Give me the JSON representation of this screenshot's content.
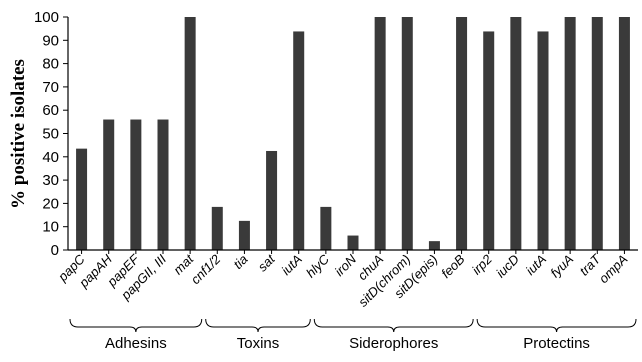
{
  "chart_data": {
    "type": "bar",
    "title": "",
    "xlabel": "",
    "ylabel": "% positive isolates",
    "ylim": [
      0,
      100
    ],
    "yticks": [
      0,
      10,
      20,
      30,
      40,
      50,
      60,
      70,
      80,
      90,
      100
    ],
    "grid": false,
    "bar_color": "#3a3a3a",
    "categories": [
      "papC",
      "papAH",
      "papEF",
      "papGII, III",
      "mat",
      "cnf1/2",
      "tia",
      "sat",
      "iutA",
      "hlyC",
      "iroN",
      "chuA",
      "sitD(chrom)",
      "sitD(epis)",
      "feoB",
      "irp2",
      "iucD",
      "iutA",
      "fyuA",
      "traT",
      "ompA"
    ],
    "values": [
      43.5,
      56,
      56,
      56,
      100,
      18.5,
      12.5,
      42.5,
      93.8,
      18.5,
      6.2,
      100,
      100,
      3.8,
      100,
      93.8,
      100,
      93.8,
      100,
      100,
      100
    ],
    "groups": [
      {
        "label": "Adhesins",
        "start": 0,
        "end": 4
      },
      {
        "label": "Toxins",
        "start": 5,
        "end": 8
      },
      {
        "label": "Siderophores",
        "start": 9,
        "end": 14
      },
      {
        "label": "Protectins",
        "start": 15,
        "end": 20
      }
    ]
  }
}
